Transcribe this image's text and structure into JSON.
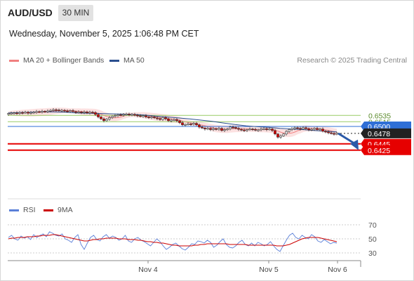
{
  "header": {
    "pair": "AUD/USD",
    "timeframe": "30 MIN",
    "datetime": "Wednesday, November 5, 2025 1:06:48 PM CET"
  },
  "legend": {
    "ma20": "MA 20 + Bollinger Bands",
    "ma50": "MA 50",
    "credit": "Research © 2025 Trading Central"
  },
  "rsi_legend": {
    "rsi": "RSI",
    "ma9": "9MA"
  },
  "colors": {
    "ma20": "#f08080",
    "band_fill": "#fbd9d9",
    "ma50": "#2b4f8f",
    "up_candle": "#cfcfcf",
    "down_candle": "#cc0000",
    "resistance": "#99cc66",
    "pivot": "#2f6fd6",
    "support": "#e60000",
    "current": "#222222",
    "arrow": "#2b5aa8",
    "rsi": "#5a7fd8",
    "rsi_ma": "#cc0000"
  },
  "chart_data": [
    {
      "type": "candlestick",
      "title": "AUD/USD 30 MIN",
      "x_labels": [
        "Nov 4",
        "Nov 5",
        "Nov 6"
      ],
      "ylim": [
        0.6415,
        0.6565
      ],
      "levels": [
        {
          "value": 0.6535,
          "label": "0.6535",
          "kind": "resistance"
        },
        {
          "value": 0.6515,
          "label": "0.6515",
          "kind": "resistance"
        },
        {
          "value": 0.65,
          "label": "0.6500",
          "kind": "pivot"
        },
        {
          "value": 0.6478,
          "label": "0.6478",
          "kind": "current"
        },
        {
          "value": 0.6445,
          "label": "0.6445",
          "kind": "support"
        },
        {
          "value": 0.6425,
          "label": "0.6425",
          "kind": "support"
        }
      ],
      "close": [
        0.6541,
        0.6542,
        0.6543,
        0.6541,
        0.6544,
        0.6543,
        0.6545,
        0.6542,
        0.6544,
        0.6545,
        0.6547,
        0.6546,
        0.6548,
        0.6547,
        0.6549,
        0.6551,
        0.6553,
        0.6552,
        0.655,
        0.6551,
        0.6549,
        0.6548,
        0.655,
        0.6547,
        0.6545,
        0.6546,
        0.6544,
        0.6546,
        0.6543,
        0.6545,
        0.6544,
        0.6538,
        0.653,
        0.6524,
        0.6518,
        0.6523,
        0.6528,
        0.6532,
        0.6534,
        0.6537,
        0.6536,
        0.6538,
        0.6539,
        0.6537,
        0.6538,
        0.6536,
        0.6534,
        0.6532,
        0.6534,
        0.653,
        0.6528,
        0.653,
        0.6527,
        0.6525,
        0.6522,
        0.6528,
        0.6524,
        0.6518,
        0.652,
        0.6522,
        0.6518,
        0.6512,
        0.6505,
        0.6506,
        0.6508,
        0.6507,
        0.651,
        0.6505,
        0.6498,
        0.6495,
        0.6492,
        0.6494,
        0.649,
        0.6493,
        0.6491,
        0.6494,
        0.6487,
        0.649,
        0.6492,
        0.6498,
        0.6497,
        0.6494,
        0.6491,
        0.6489,
        0.6487,
        0.649,
        0.6492,
        0.6491,
        0.6488,
        0.6489,
        0.6492,
        0.6493,
        0.649,
        0.6492,
        0.6487,
        0.6476,
        0.6466,
        0.647,
        0.6476,
        0.6484,
        0.649,
        0.6493,
        0.6496,
        0.6494,
        0.6492,
        0.6496,
        0.6493,
        0.6489,
        0.6491,
        0.6494,
        0.649,
        0.6492,
        0.6485,
        0.6483,
        0.648,
        0.6478,
        0.6476,
        0.6478
      ],
      "ma50": [
        0.6543,
        0.6544,
        0.6545,
        0.6546,
        0.6546,
        0.6545,
        0.6543,
        0.6542,
        0.6541,
        0.654,
        0.6539,
        0.6538,
        0.6536,
        0.6533,
        0.653,
        0.6527,
        0.6524,
        0.652,
        0.6516,
        0.6511,
        0.6506,
        0.6502,
        0.6499,
        0.6497,
        0.6494,
        0.6492,
        0.649,
        0.6487,
        0.6485,
        0.6483
      ],
      "ma20_upper_hint": "band around MA20"
    },
    {
      "type": "line",
      "title": "RSI",
      "series": [
        {
          "name": "RSI",
          "values": [
            52,
            55,
            50,
            48,
            54,
            51,
            53,
            49,
            56,
            52,
            55,
            57,
            53,
            60,
            58,
            55,
            54,
            57,
            50,
            48,
            45,
            52,
            56,
            42,
            35,
            44,
            52,
            55,
            49,
            47,
            53,
            56,
            51,
            54,
            52,
            48,
            50,
            55,
            47,
            45,
            50,
            52,
            48,
            46,
            43,
            40,
            45,
            50,
            46,
            40,
            35,
            38,
            42,
            44,
            40,
            36,
            34,
            38,
            43,
            42,
            47,
            46,
            44,
            48,
            45,
            38,
            41,
            46,
            50,
            42,
            38,
            37,
            40,
            45,
            48,
            42,
            40,
            44,
            40,
            45,
            43,
            40,
            42,
            46,
            40,
            35,
            32,
            40,
            48,
            55,
            58,
            52,
            50,
            55,
            52,
            50,
            56,
            53,
            47,
            45,
            49,
            46,
            43,
            45,
            44
          ]
        },
        {
          "name": "9MA",
          "values": [
            50,
            51,
            51,
            52,
            52,
            52,
            53,
            53,
            53,
            54,
            54,
            55,
            55,
            55,
            56,
            56,
            55,
            54,
            53,
            52,
            51,
            50,
            49,
            48,
            47,
            47,
            48,
            49,
            49,
            50,
            50,
            51,
            51,
            51,
            51,
            50,
            50,
            50,
            49,
            49,
            49,
            48,
            48,
            47,
            46,
            46,
            45,
            45,
            44,
            44,
            43,
            42,
            41,
            41,
            40,
            40,
            40,
            40,
            40,
            41,
            41,
            42,
            42,
            43,
            43,
            43,
            43,
            43,
            43,
            43,
            42,
            42,
            42,
            42,
            42,
            42,
            41,
            41,
            41,
            41,
            41,
            41,
            41,
            41,
            41,
            40,
            40,
            40,
            41,
            42,
            44,
            46,
            48,
            50,
            51,
            52,
            52,
            52,
            52,
            51,
            50,
            49,
            48,
            47,
            46
          ]
        }
      ],
      "ylim": [
        20,
        80
      ],
      "y_ticks": [
        70,
        50,
        30
      ]
    }
  ]
}
